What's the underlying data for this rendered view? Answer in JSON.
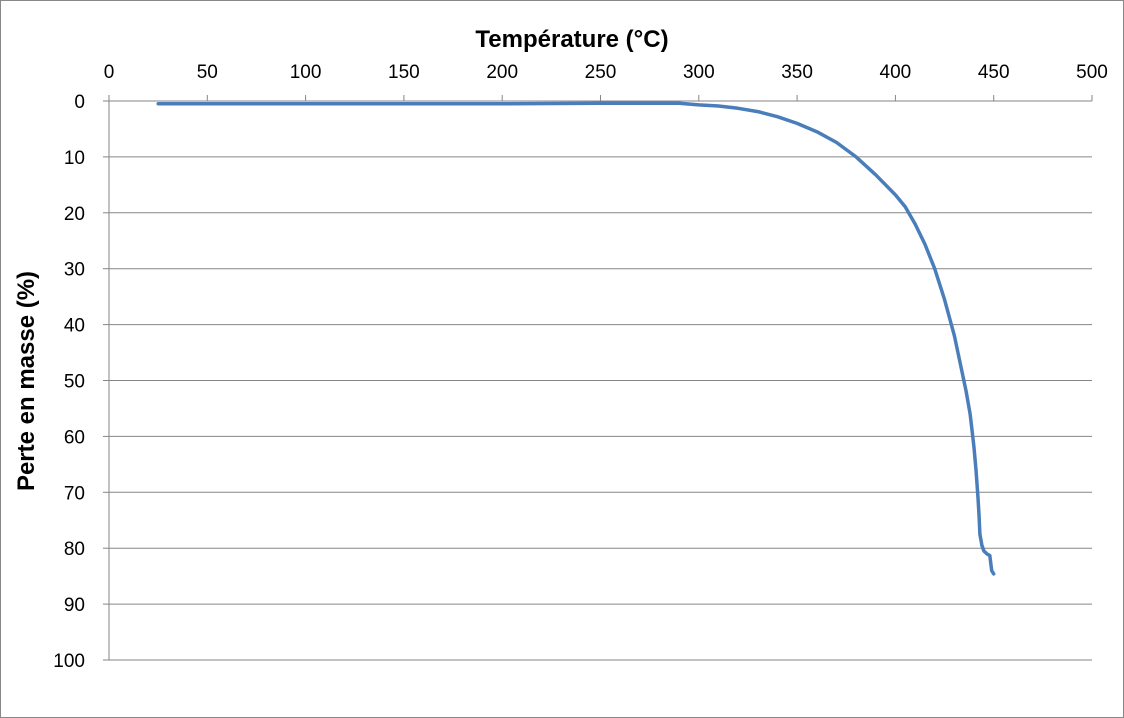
{
  "chart_data": {
    "type": "line",
    "xlabel": "Température (°C)",
    "ylabel": "Perte en masse (%)",
    "xlim": [
      0,
      500
    ],
    "ylim": [
      0,
      100
    ],
    "x_axis_position": "top",
    "y_axis_inverted": true,
    "xticks": [
      "0",
      "50",
      "100",
      "150",
      "200",
      "250",
      "300",
      "350",
      "400",
      "450",
      "500"
    ],
    "yticks": [
      "0",
      "10",
      "20",
      "30",
      "40",
      "50",
      "60",
      "70",
      "80",
      "90",
      "100"
    ],
    "grid": "horizontal",
    "legend": "none",
    "series": [
      {
        "color": "#4a7ebb",
        "points": [
          [
            25,
            0.5
          ],
          [
            50,
            0.5
          ],
          [
            100,
            0.5
          ],
          [
            150,
            0.5
          ],
          [
            200,
            0.5
          ],
          [
            250,
            0.4
          ],
          [
            290,
            0.4
          ],
          [
            300,
            0.7
          ],
          [
            310,
            0.9
          ],
          [
            320,
            1.3
          ],
          [
            330,
            1.9
          ],
          [
            340,
            2.8
          ],
          [
            350,
            4.0
          ],
          [
            360,
            5.5
          ],
          [
            370,
            7.4
          ],
          [
            380,
            10.0
          ],
          [
            390,
            13.2
          ],
          [
            400,
            16.8
          ],
          [
            405,
            18.9
          ],
          [
            410,
            22.0
          ],
          [
            415,
            25.6
          ],
          [
            420,
            30.0
          ],
          [
            425,
            35.5
          ],
          [
            430,
            42.0
          ],
          [
            433,
            47.0
          ],
          [
            436,
            52.0
          ],
          [
            438,
            56.0
          ],
          [
            439,
            59.0
          ],
          [
            440,
            62.0
          ],
          [
            441,
            66.0
          ],
          [
            442,
            71.0
          ],
          [
            442.5,
            74.0
          ],
          [
            443,
            77.5
          ],
          [
            444,
            79.5
          ],
          [
            445,
            80.5
          ],
          [
            446.5,
            81.0
          ],
          [
            448,
            81.3
          ],
          [
            449,
            84.0
          ],
          [
            450,
            84.6
          ]
        ]
      }
    ]
  }
}
